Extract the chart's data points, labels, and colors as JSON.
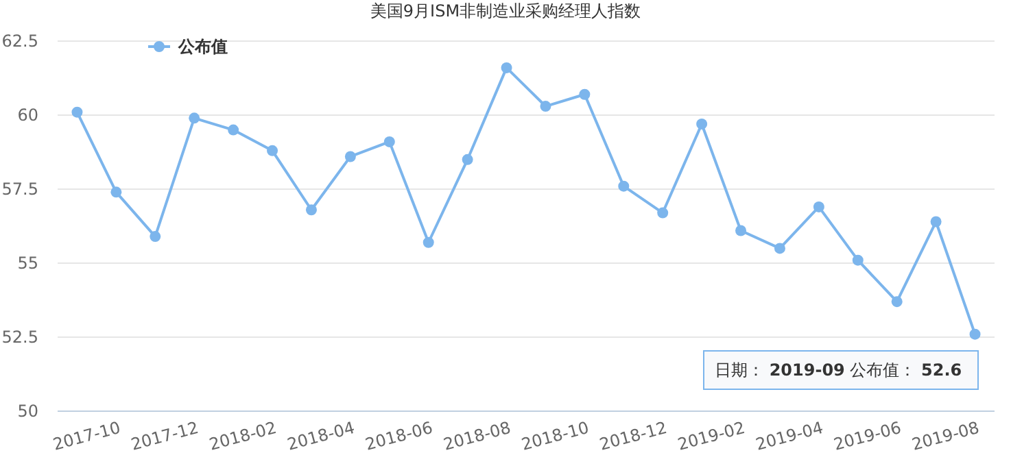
{
  "chart_data": {
    "type": "line",
    "title": "美国9月ISM非制造业采购经理人指数",
    "categories": [
      "2017-10",
      null,
      "2017-12",
      null,
      "2018-02",
      null,
      "2018-04",
      null,
      "2018-06",
      null,
      "2018-08",
      null,
      "2018-10",
      null,
      "2018-12",
      null,
      "2019-02",
      null,
      "2019-04",
      null,
      "2019-06",
      null,
      "2019-08",
      null
    ],
    "series": [
      {
        "name": "公布值",
        "color": "#7cb5ec",
        "values": [
          60.1,
          57.4,
          55.9,
          59.9,
          59.5,
          58.8,
          56.8,
          58.6,
          59.1,
          55.7,
          58.5,
          61.6,
          60.3,
          60.7,
          57.6,
          56.7,
          59.7,
          56.1,
          55.5,
          56.9,
          55.1,
          53.7,
          56.4,
          52.6
        ]
      }
    ],
    "ylim": [
      50,
      62.5
    ],
    "yticks": [
      50,
      52.5,
      55,
      57.5,
      60,
      62.5
    ],
    "grid": "y",
    "legend": "top left",
    "marker": "circle",
    "line_style": "solid",
    "annotations": [
      "日期： **2019-09** 公布值： **52.6**"
    ]
  }
}
